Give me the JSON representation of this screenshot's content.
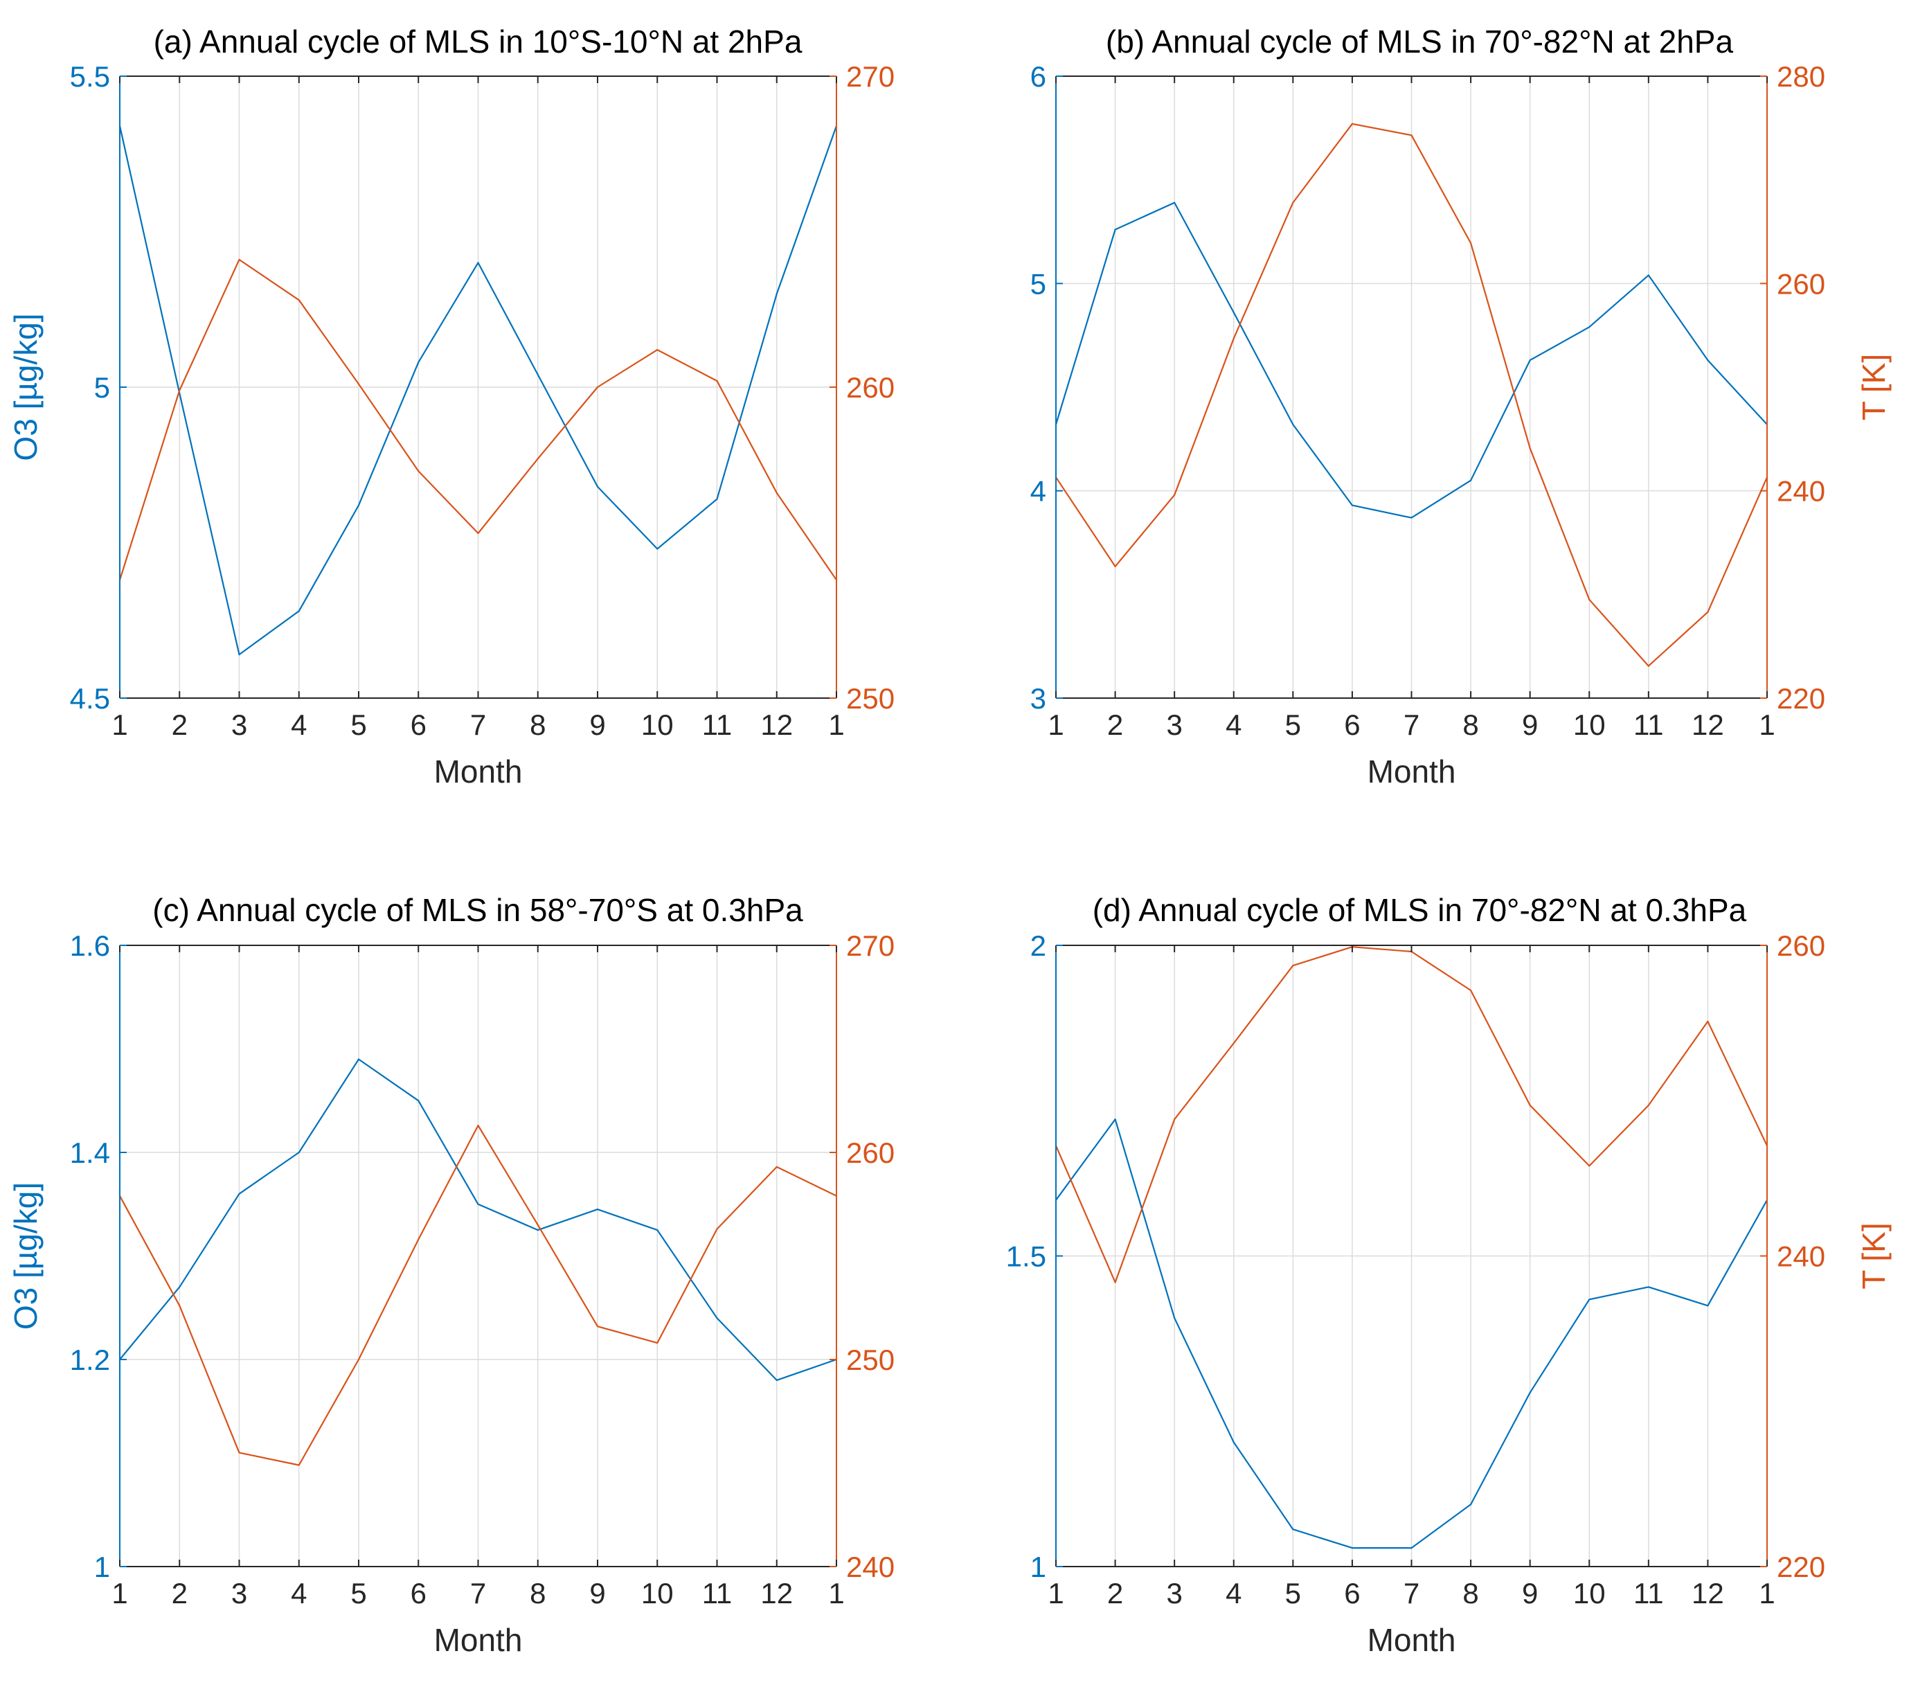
{
  "colors": {
    "o3": "#0072BD",
    "t": "#D95319",
    "grid": "#DCDCDC",
    "axis": "#262626",
    "title": "#000000"
  },
  "chart_data": [
    {
      "type": "line",
      "title": "(a) Annual cycle of MLS in 10°S-10°N at 2hPa",
      "xlabel": "Month",
      "ylabel_left": "O3 [µg/kg]",
      "ylabel_right": "",
      "x": [
        1,
        2,
        3,
        4,
        5,
        6,
        7,
        8,
        9,
        10,
        11,
        12,
        13
      ],
      "xtick_labels": [
        "1",
        "2",
        "3",
        "4",
        "5",
        "6",
        "7",
        "8",
        "9",
        "10",
        "11",
        "12",
        "1"
      ],
      "ylim_left": [
        4.5,
        5.5
      ],
      "yticks_left": [
        4.5,
        5,
        5.5
      ],
      "ytick_labels_left": [
        "4.5",
        "5",
        "5.5"
      ],
      "ylim_right": [
        250,
        270
      ],
      "yticks_right": [
        250,
        260,
        270
      ],
      "ytick_labels_right": [
        "250",
        "260",
        "270"
      ],
      "grid": true,
      "series": [
        {
          "name": "O3",
          "axis": "left",
          "values": [
            5.42,
            4.99,
            4.57,
            4.64,
            4.81,
            5.04,
            5.2,
            5.02,
            4.84,
            4.74,
            4.82,
            5.15,
            5.42
          ]
        },
        {
          "name": "T",
          "axis": "right",
          "values": [
            253.8,
            259.9,
            264.1,
            262.8,
            260.1,
            257.3,
            255.3,
            257.7,
            260.0,
            261.2,
            260.2,
            256.6,
            253.8
          ]
        }
      ]
    },
    {
      "type": "line",
      "title": "(b) Annual cycle of MLS in 70°-82°N at 2hPa",
      "xlabel": "Month",
      "ylabel_left": "",
      "ylabel_right": "T [K]",
      "x": [
        1,
        2,
        3,
        4,
        5,
        6,
        7,
        8,
        9,
        10,
        11,
        12,
        13
      ],
      "xtick_labels": [
        "1",
        "2",
        "3",
        "4",
        "5",
        "6",
        "7",
        "8",
        "9",
        "10",
        "11",
        "12",
        "1"
      ],
      "ylim_left": [
        3,
        6
      ],
      "yticks_left": [
        3,
        4,
        5,
        6
      ],
      "ytick_labels_left": [
        "3",
        "4",
        "5",
        "6"
      ],
      "ylim_right": [
        220,
        280
      ],
      "yticks_right": [
        220,
        240,
        260,
        280
      ],
      "ytick_labels_right": [
        "220",
        "240",
        "260",
        "280"
      ],
      "grid": true,
      "series": [
        {
          "name": "O3",
          "axis": "left",
          "values": [
            4.32,
            5.26,
            5.39,
            4.86,
            4.32,
            3.93,
            3.87,
            4.05,
            4.63,
            4.79,
            5.04,
            4.63,
            4.32
          ]
        },
        {
          "name": "T",
          "axis": "right",
          "values": [
            241.3,
            232.7,
            239.6,
            254.7,
            267.8,
            275.4,
            274.3,
            263.9,
            244.1,
            229.5,
            223.1,
            228.3,
            241.3
          ]
        }
      ]
    },
    {
      "type": "line",
      "title": "(c) Annual cycle of MLS in 58°-70°S at 0.3hPa",
      "xlabel": "Month",
      "ylabel_left": "O3 [µg/kg]",
      "ylabel_right": "",
      "x": [
        1,
        2,
        3,
        4,
        5,
        6,
        7,
        8,
        9,
        10,
        11,
        12,
        13
      ],
      "xtick_labels": [
        "1",
        "2",
        "3",
        "4",
        "5",
        "6",
        "7",
        "8",
        "9",
        "10",
        "11",
        "12",
        "1"
      ],
      "ylim_left": [
        1,
        1.6
      ],
      "yticks_left": [
        1,
        1.2,
        1.4,
        1.6
      ],
      "ytick_labels_left": [
        "1",
        "1.2",
        "1.4",
        "1.6"
      ],
      "ylim_right": [
        240,
        270
      ],
      "yticks_right": [
        240,
        250,
        260,
        270
      ],
      "ytick_labels_right": [
        "240",
        "250",
        "260",
        "270"
      ],
      "grid": true,
      "series": [
        {
          "name": "O3",
          "axis": "left",
          "values": [
            1.2,
            1.27,
            1.36,
            1.4,
            1.49,
            1.45,
            1.35,
            1.325,
            1.345,
            1.325,
            1.24,
            1.18,
            1.2
          ]
        },
        {
          "name": "T",
          "axis": "right",
          "values": [
            257.9,
            252.6,
            245.5,
            244.9,
            250.0,
            255.8,
            261.3,
            256.5,
            251.6,
            250.8,
            256.3,
            259.3,
            257.9
          ]
        }
      ]
    },
    {
      "type": "line",
      "title": "(d) Annual cycle of MLS in 70°-82°N at 0.3hPa",
      "xlabel": "Month",
      "ylabel_left": "",
      "ylabel_right": "T [K]",
      "x": [
        1,
        2,
        3,
        4,
        5,
        6,
        7,
        8,
        9,
        10,
        11,
        12,
        13
      ],
      "xtick_labels": [
        "1",
        "2",
        "3",
        "4",
        "5",
        "6",
        "7",
        "8",
        "9",
        "10",
        "11",
        "12",
        "1"
      ],
      "ylim_left": [
        1,
        2
      ],
      "yticks_left": [
        1,
        1.5,
        2
      ],
      "ytick_labels_left": [
        "1",
        "1.5",
        "2"
      ],
      "ylim_right": [
        220,
        260
      ],
      "yticks_right": [
        220,
        240,
        260
      ],
      "ytick_labels_right": [
        "220",
        "240",
        "260"
      ],
      "grid": true,
      "series": [
        {
          "name": "O3",
          "axis": "left",
          "values": [
            1.59,
            1.72,
            1.4,
            1.2,
            1.06,
            1.03,
            1.03,
            1.1,
            1.28,
            1.43,
            1.45,
            1.42,
            1.59
          ]
        },
        {
          "name": "T",
          "axis": "right",
          "values": [
            247.1,
            238.3,
            248.8,
            253.7,
            258.7,
            259.9,
            259.6,
            257.1,
            249.7,
            245.8,
            249.7,
            255.1,
            247.1
          ]
        }
      ]
    }
  ]
}
